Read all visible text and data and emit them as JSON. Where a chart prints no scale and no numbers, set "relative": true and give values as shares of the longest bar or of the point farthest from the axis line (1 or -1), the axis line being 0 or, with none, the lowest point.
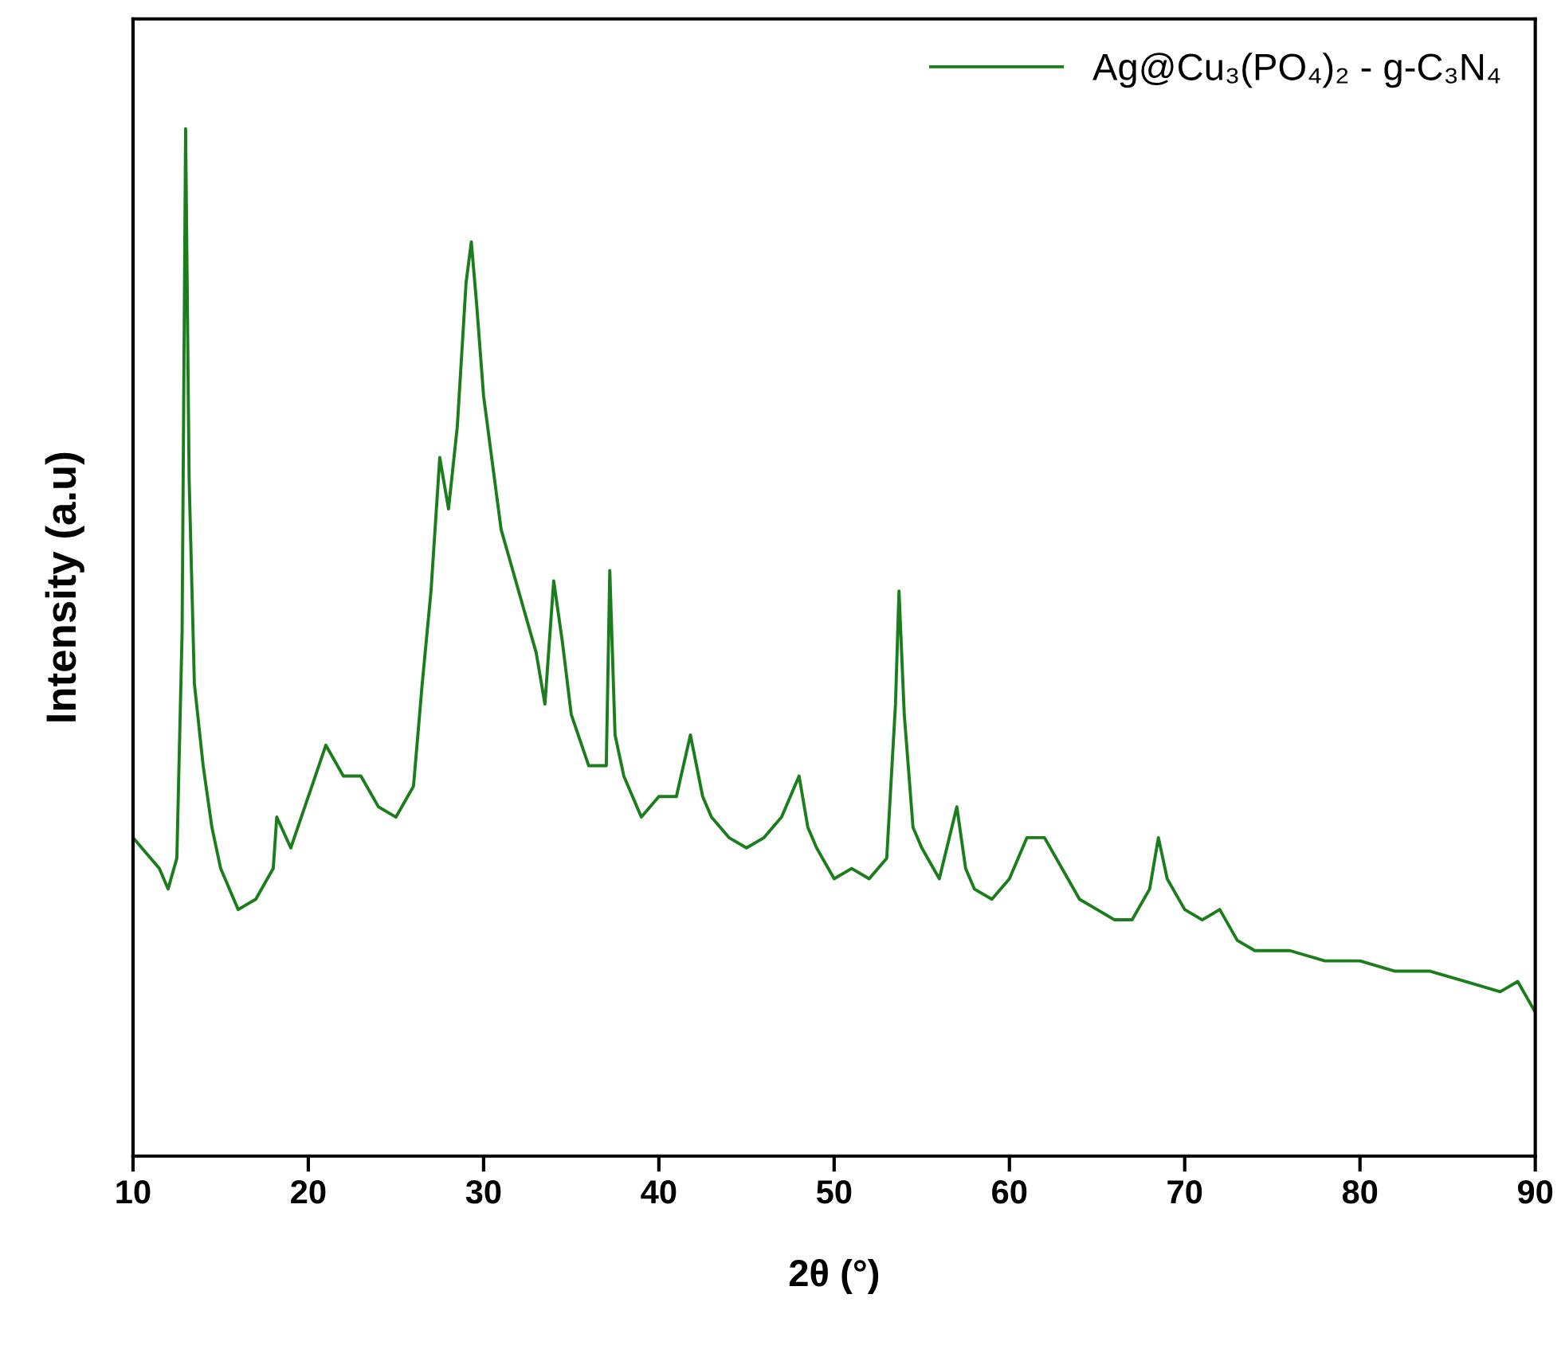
{
  "chart_data": {
    "type": "line",
    "xlabel": "2θ (°)",
    "ylabel": "Intensity (a.u)",
    "relative": true,
    "xlim": [
      10,
      90
    ],
    "xticks": [
      10,
      20,
      30,
      40,
      50,
      60,
      70,
      80,
      90
    ],
    "legend": "top right",
    "grid": false,
    "series": [
      {
        "name": "Ag@Cu₃(PO₄)₂ - g-C₃N₄",
        "color": "#1b7d1b",
        "x": [
          10,
          10.5,
          11.5,
          12,
          12.5,
          12.8,
          13.0,
          13.2,
          13.5,
          14,
          14.5,
          15,
          16,
          17,
          18,
          18.2,
          19,
          20,
          21,
          22,
          23,
          24,
          25,
          26,
          26.5,
          27,
          27.5,
          28,
          28.5,
          29,
          29.3,
          29.6,
          30,
          31,
          31.5,
          32,
          33,
          33.5,
          34,
          34.5,
          35,
          36,
          37,
          37.2,
          37.5,
          38,
          39,
          40,
          41,
          41.8,
          42.5,
          43,
          44,
          45,
          46,
          47,
          48,
          48.5,
          49,
          50,
          51,
          52,
          53,
          53.5,
          53.7,
          54,
          54.5,
          55,
          56,
          57,
          57.5,
          58,
          59,
          60,
          61,
          62,
          63,
          64,
          65,
          66,
          67,
          68,
          68.5,
          69,
          70,
          71,
          72,
          73,
          74,
          75,
          76,
          78,
          80,
          82,
          84,
          86,
          88,
          89,
          90
        ],
        "values": [
          0.31,
          0.3,
          0.28,
          0.26,
          0.29,
          0.51,
          1.0,
          0.66,
          0.46,
          0.38,
          0.32,
          0.28,
          0.24,
          0.25,
          0.28,
          0.33,
          0.3,
          0.35,
          0.4,
          0.37,
          0.37,
          0.34,
          0.33,
          0.36,
          0.46,
          0.55,
          0.68,
          0.63,
          0.71,
          0.85,
          0.89,
          0.83,
          0.74,
          0.61,
          0.58,
          0.55,
          0.49,
          0.44,
          0.56,
          0.5,
          0.43,
          0.38,
          0.38,
          0.57,
          0.41,
          0.37,
          0.33,
          0.35,
          0.35,
          0.41,
          0.35,
          0.33,
          0.31,
          0.3,
          0.31,
          0.33,
          0.37,
          0.32,
          0.3,
          0.27,
          0.28,
          0.27,
          0.29,
          0.44,
          0.55,
          0.43,
          0.32,
          0.3,
          0.27,
          0.34,
          0.28,
          0.26,
          0.25,
          0.27,
          0.31,
          0.31,
          0.28,
          0.25,
          0.24,
          0.23,
          0.23,
          0.26,
          0.31,
          0.27,
          0.24,
          0.23,
          0.24,
          0.21,
          0.2,
          0.2,
          0.2,
          0.19,
          0.19,
          0.18,
          0.18,
          0.17,
          0.16,
          0.17,
          0.14
        ]
      }
    ]
  }
}
